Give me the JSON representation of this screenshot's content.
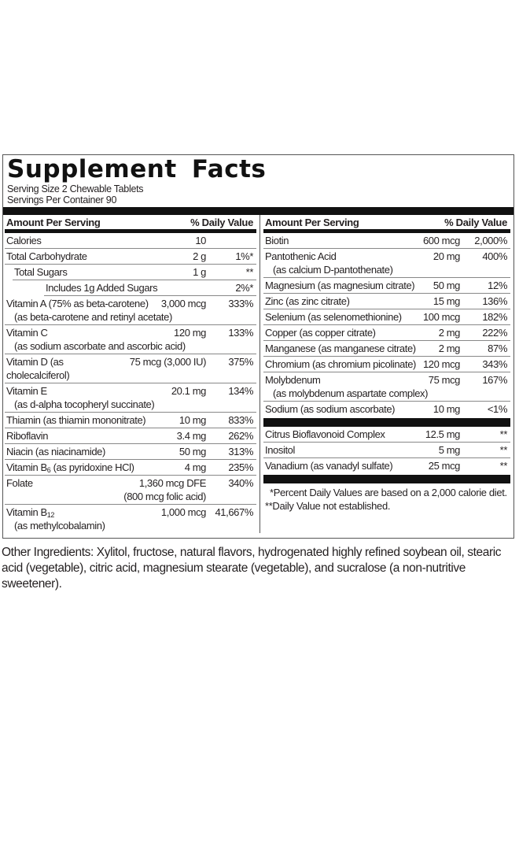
{
  "title": "Supplement Facts",
  "serving_size": "Serving Size 2 Chewable Tablets",
  "servings_per_container": "Servings Per Container 90",
  "left_header": {
    "amount": "Amount Per Serving",
    "dv": "% Daily Value"
  },
  "right_header": {
    "amount": "Amount Per Serving",
    "dv": "% Daily Value"
  },
  "left_rows": [
    {
      "name": "Calories",
      "amount": "10",
      "dv": ""
    },
    {
      "name": "Total Carbohydrate",
      "amount": "2 g",
      "dv": "1%*"
    },
    {
      "name": "Total Sugars",
      "amount": "1 g",
      "dv": "**"
    },
    {
      "name": "Includes 1g Added Sugars",
      "amount": "",
      "dv": "2%*"
    },
    {
      "name": "Vitamin A (75% as beta-carotene)",
      "sub": "(as beta-carotene and retinyl acetate)",
      "amount": "3,000 mcg",
      "dv": "333%"
    },
    {
      "name": "Vitamin C",
      "sub": "(as sodium ascorbate and ascorbic acid)",
      "amount": "120 mg",
      "dv": "133%"
    },
    {
      "name": "Vitamin D (as cholecalciferol)",
      "amount": "75 mcg (3,000 IU)",
      "dv": "375%"
    },
    {
      "name": "Vitamin E",
      "sub": "(as d-alpha tocopheryl succinate)",
      "amount": "20.1 mg",
      "dv": "134%"
    },
    {
      "name": "Thiamin (as thiamin mononitrate)",
      "amount": "10 mg",
      "dv": "833%"
    },
    {
      "name": "Riboflavin",
      "amount": "3.4 mg",
      "dv": "262%"
    },
    {
      "name": "Niacin (as niacinamide)",
      "amount": "50 mg",
      "dv": "313%"
    },
    {
      "name": "Vitamin B",
      "name_sub": "6",
      "name_rest": " (as pyridoxine HCl)",
      "amount": "4 mg",
      "dv": "235%"
    },
    {
      "name": "Folate",
      "amount": "1,360 mcg DFE",
      "amount2": "(800 mcg folic acid)",
      "dv": "340%"
    },
    {
      "name": "Vitamin B",
      "name_sub": "12",
      "name_rest": "",
      "sub": "(as methylcobalamin)",
      "amount": "1,000 mcg",
      "dv": "41,667%"
    }
  ],
  "right_rows": [
    {
      "name": "Biotin",
      "amount": "600 mcg",
      "dv": "2,000%"
    },
    {
      "name": "Pantothenic Acid",
      "sub": "(as calcium D-pantothenate)",
      "amount": "20 mg",
      "dv": "400%"
    },
    {
      "name": "Magnesium (as magnesium citrate)",
      "amount": "50 mg",
      "dv": "12%"
    },
    {
      "name": "Zinc (as zinc citrate)",
      "amount": "15 mg",
      "dv": "136%"
    },
    {
      "name": "Selenium (as selenomethionine)",
      "amount": "100 mcg",
      "dv": "182%"
    },
    {
      "name": "Copper (as copper citrate)",
      "amount": "2 mg",
      "dv": "222%"
    },
    {
      "name": "Manganese (as manganese citrate)",
      "amount": "2 mg",
      "dv": "87%"
    },
    {
      "name": "Chromium (as chromium picolinate)",
      "amount": "120 mcg",
      "dv": "343%"
    },
    {
      "name": "Molybdenum",
      "sub": "(as molybdenum aspartate complex)",
      "amount": "75 mcg",
      "dv": "167%"
    },
    {
      "name": "Sodium (as sodium ascorbate)",
      "amount": "10 mg",
      "dv": "<1%"
    }
  ],
  "right_rows_2": [
    {
      "name": "Citrus Bioflavonoid Complex",
      "amount": "12.5 mg",
      "dv": "**"
    },
    {
      "name": "Inositol",
      "amount": "5 mg",
      "dv": "**"
    },
    {
      "name": "Vanadium (as vanadyl sulfate)",
      "amount": "25 mcg",
      "dv": "**"
    }
  ],
  "footnote_1": "*Percent Daily Values are based on a 2,000 calorie diet.",
  "footnote_2": "**Daily Value not established.",
  "other_ingredients": "Other Ingredients: Xylitol, fructose, natural flavors, hydrogenated highly refined soybean oil, stearic acid (vegetable), citric acid, magnesium stearate (vegetable), and sucralose (a non-nutritive sweetener)."
}
